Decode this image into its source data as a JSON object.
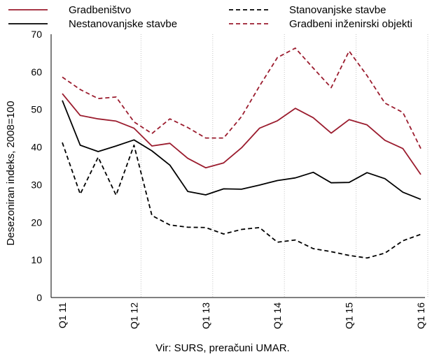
{
  "chart_data": {
    "type": "line",
    "ylabel": "Desezoniran indeks, 2008=100",
    "ylim": [
      0,
      70
    ],
    "yticks": [
      0,
      10,
      20,
      30,
      40,
      50,
      60,
      70
    ],
    "x_tick_labels": [
      "Q1 11",
      "Q1 12",
      "Q1 13",
      "Q1 14",
      "Q1 15",
      "Q1 16"
    ],
    "grid": "vertical",
    "legend_position": "top",
    "source": "Vir: SURS, preračuni UMAR.",
    "series": [
      {
        "name": "Gradbeništvo",
        "color": "#9b1c2e",
        "style": "solid",
        "values": [
          54.2,
          48.4,
          47.5,
          46.9,
          45.0,
          40.3,
          41.0,
          37.0,
          34.5,
          35.8,
          39.8,
          45.0,
          47.0,
          50.3,
          47.8,
          43.7,
          47.3,
          45.9,
          41.8,
          39.6,
          32.7
        ]
      },
      {
        "name": "Nestanovanjske stavbe",
        "color": "#000000",
        "style": "solid",
        "values": [
          52.4,
          40.5,
          38.8,
          40.3,
          41.9,
          39.0,
          35.2,
          28.2,
          27.3,
          28.9,
          28.8,
          29.9,
          31.1,
          31.8,
          33.3,
          30.5,
          30.6,
          33.2,
          31.6,
          28.0,
          26.1
        ]
      },
      {
        "name": "Stanovanjske stavbe",
        "color": "#000000",
        "style": "dashed",
        "values": [
          41.2,
          27.5,
          37.3,
          27.2,
          40.5,
          21.8,
          19.3,
          18.7,
          18.6,
          16.9,
          18.1,
          18.6,
          14.7,
          15.3,
          13.0,
          12.2,
          11.2,
          10.5,
          11.8,
          15.1,
          16.8
        ]
      },
      {
        "name": "Gradbeni inženirski objekti",
        "color": "#9b1c2e",
        "style": "dashed",
        "values": [
          58.6,
          55.3,
          52.9,
          53.3,
          46.7,
          43.6,
          47.5,
          45.2,
          42.4,
          42.4,
          48.1,
          56.2,
          63.8,
          66.3,
          61.0,
          55.8,
          65.5,
          59.0,
          51.7,
          49.2,
          39.6
        ]
      }
    ]
  }
}
